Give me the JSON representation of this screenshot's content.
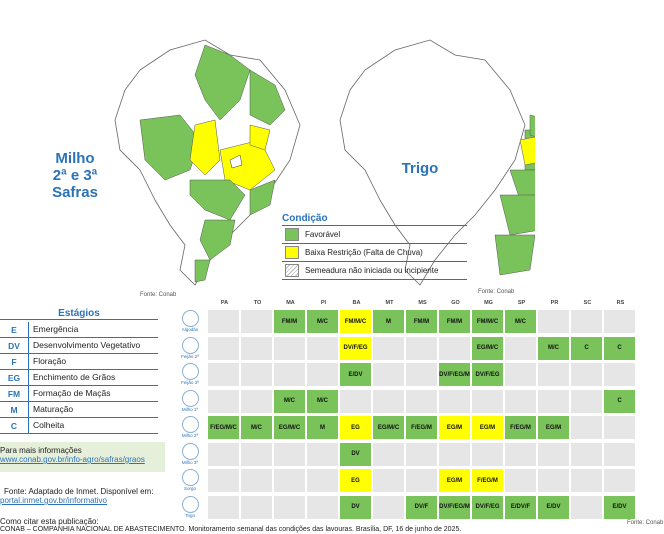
{
  "colors": {
    "favoravel": "#7ac35a",
    "baixa": "#ffff00",
    "gray": "#e6e6e6",
    "border": "#2b73b8"
  },
  "maps": {
    "left_title": [
      "Milho",
      "2ª e 3ª",
      "Safras"
    ],
    "right_title": "Trigo",
    "source_left": "Fonte: Conab",
    "source_right": "Fonte: Conab"
  },
  "condicao": {
    "title": "Condição",
    "items": [
      {
        "label": "Favorável",
        "color": "#7ac35a"
      },
      {
        "label": "Baixa Restrição (Falta de Chuva)",
        "color": "#ffff00"
      },
      {
        "label": "Semeadura não iniciada ou incipiente",
        "color": "hatch"
      }
    ]
  },
  "estagios": {
    "title": "Estágios",
    "items": [
      {
        "code": "E",
        "label": "Emergência"
      },
      {
        "code": "DV",
        "label": "Desenvolvimento Vegetativo"
      },
      {
        "code": "F",
        "label": "Floração"
      },
      {
        "code": "EG",
        "label": "Enchimento de Grãos"
      },
      {
        "code": "FM",
        "label": "Formação de Maçãs"
      },
      {
        "code": "M",
        "label": "Maturação"
      },
      {
        "code": "C",
        "label": "Colheita"
      }
    ]
  },
  "info": {
    "more": "Para mais informações",
    "more_link": "www.conab.gov.br/info-agro/safras/graos",
    "fonte": "Fonte: Adaptado de Inmet. Disponível em:",
    "fonte_link": "portal.inmet.gov.br/informativo",
    "cite_title": "Como citar esta publicação:",
    "cite_text": "CONAB – COMPANHIA NACIONAL DE ABASTECIMENTO. Monitoramento semanal das condições das lavouras. Brasília, DF, 16 de junho de 2025.",
    "cal_source": "Fonte: Conab"
  },
  "calendar": {
    "states": [
      "PA",
      "TO",
      "MA",
      "PI",
      "BA",
      "MT",
      "MS",
      "GO",
      "MG",
      "SP",
      "PR",
      "SC",
      "RS"
    ],
    "crops": [
      "Algodão",
      "Feijão 2ª",
      "Feijão 3ª",
      "Milho 1ª",
      "Milho 2ª",
      "Milho 3ª",
      "Sorgo",
      "Trigo"
    ],
    "rows": [
      [
        [
          "",
          ""
        ],
        [
          "",
          ""
        ],
        [
          "FM/M",
          "g"
        ],
        [
          "M/C",
          "g"
        ],
        [
          "FM/M/C",
          "y"
        ],
        [
          "M",
          "g"
        ],
        [
          "FM/M",
          "g"
        ],
        [
          "FM/M",
          "g"
        ],
        [
          "FM/M/C",
          "g"
        ],
        [
          "M/C",
          "g"
        ],
        [
          "",
          ""
        ],
        [
          "",
          ""
        ],
        [
          "",
          ""
        ]
      ],
      [
        [
          "",
          ""
        ],
        [
          "",
          ""
        ],
        [
          "",
          ""
        ],
        [
          "",
          ""
        ],
        [
          "DV/F/EG",
          "y"
        ],
        [
          "",
          ""
        ],
        [
          "",
          ""
        ],
        [
          "",
          ""
        ],
        [
          "EG/M/C",
          "g"
        ],
        [
          "",
          ""
        ],
        [
          "M/C",
          "g"
        ],
        [
          "C",
          "g"
        ],
        [
          "C",
          "g"
        ]
      ],
      [
        [
          "",
          ""
        ],
        [
          "",
          ""
        ],
        [
          "",
          ""
        ],
        [
          "",
          ""
        ],
        [
          "E/DV",
          "g"
        ],
        [
          "",
          ""
        ],
        [
          "",
          ""
        ],
        [
          "DV/F/EG/M",
          "g"
        ],
        [
          "DV/F/EG",
          "g"
        ],
        [
          "",
          ""
        ],
        [
          "",
          ""
        ],
        [
          "",
          ""
        ],
        [
          "",
          ""
        ]
      ],
      [
        [
          "",
          ""
        ],
        [
          "",
          ""
        ],
        [
          "M/C",
          "g"
        ],
        [
          "M/C",
          "g"
        ],
        [
          "",
          ""
        ],
        [
          "",
          ""
        ],
        [
          "",
          ""
        ],
        [
          "",
          ""
        ],
        [
          "",
          ""
        ],
        [
          "",
          ""
        ],
        [
          "",
          ""
        ],
        [
          "",
          ""
        ],
        [
          "C",
          "g"
        ]
      ],
      [
        [
          "F/EG/M/C",
          "g"
        ],
        [
          "M/C",
          "g"
        ],
        [
          "EG/M/C",
          "g"
        ],
        [
          "M",
          "g"
        ],
        [
          "EG",
          "y"
        ],
        [
          "EG/M/C",
          "g"
        ],
        [
          "F/EG/M",
          "g"
        ],
        [
          "EG/M",
          "y"
        ],
        [
          "EG/M",
          "y"
        ],
        [
          "F/EG/M",
          "g"
        ],
        [
          "EG/M",
          "g"
        ],
        [
          "",
          ""
        ],
        [
          "",
          ""
        ]
      ],
      [
        [
          "",
          ""
        ],
        [
          "",
          ""
        ],
        [
          "",
          ""
        ],
        [
          "",
          ""
        ],
        [
          "DV",
          "g"
        ],
        [
          "",
          ""
        ],
        [
          "",
          ""
        ],
        [
          "",
          ""
        ],
        [
          "",
          ""
        ],
        [
          "",
          ""
        ],
        [
          "",
          ""
        ],
        [
          "",
          ""
        ],
        [
          "",
          ""
        ]
      ],
      [
        [
          "",
          ""
        ],
        [
          "",
          ""
        ],
        [
          "",
          ""
        ],
        [
          "",
          ""
        ],
        [
          "EG",
          "y"
        ],
        [
          "",
          ""
        ],
        [
          "",
          ""
        ],
        [
          "EG/M",
          "y"
        ],
        [
          "F/EG/M",
          "y"
        ],
        [
          "",
          ""
        ],
        [
          "",
          ""
        ],
        [
          "",
          ""
        ],
        [
          "",
          ""
        ]
      ],
      [
        [
          "",
          ""
        ],
        [
          "",
          ""
        ],
        [
          "",
          ""
        ],
        [
          "",
          ""
        ],
        [
          "DV",
          "g"
        ],
        [
          "",
          ""
        ],
        [
          "DV/F",
          "g"
        ],
        [
          "DV/F/EG/M",
          "g"
        ],
        [
          "DV/F/EG",
          "g"
        ],
        [
          "E/DV/F",
          "g"
        ],
        [
          "E/DV",
          "g"
        ],
        [
          "",
          ""
        ],
        [
          "E/DV",
          "g"
        ]
      ]
    ]
  }
}
